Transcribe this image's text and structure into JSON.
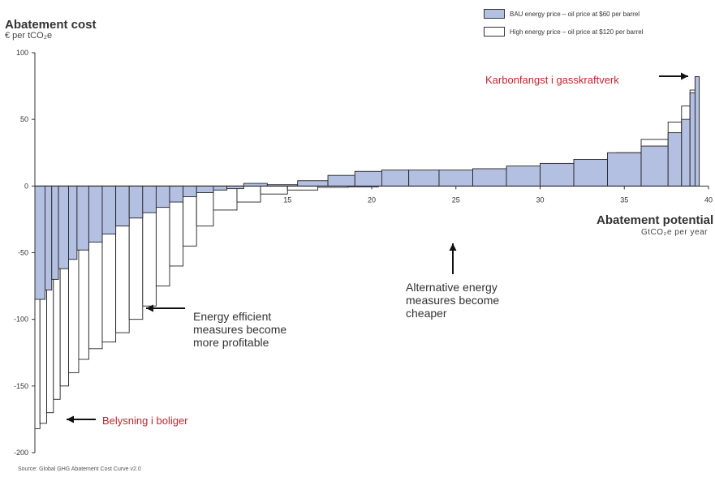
{
  "title": "Abatement cost",
  "y_unit": "€ per tCO₂e",
  "x_title": "Abatement potential",
  "x_unit": "GtCO₂e per year",
  "legend": [
    {
      "label": "BAU energy price – oil price at $60 per barrel",
      "color": "#b4c0e2"
    },
    {
      "label": "High energy price – oil price at $120 per barrel",
      "color": "#ffffff"
    }
  ],
  "annotations": {
    "efficient": [
      "Energy efficient",
      "measures become",
      "more profitable"
    ],
    "alternative": [
      "Alternative energy",
      "measures become",
      "cheaper"
    ],
    "capture": "Karbonfangst i gasskraftverk",
    "lighting": "Belysning i boliger"
  },
  "source": "Source: Global GHG Abatement Cost Curve v2.0",
  "chart_data": {
    "type": "bar",
    "title": "Abatement cost",
    "ylabel": "€ per tCO₂e",
    "xlabel": "Abatement potential",
    "xlim": [
      0,
      40
    ],
    "ylim": [
      -200,
      100
    ],
    "x_ticks": [
      15,
      20,
      25,
      30,
      35,
      40
    ],
    "y_ticks": [
      100,
      50,
      0,
      -50,
      -100,
      -150,
      -200
    ],
    "grid": false,
    "legend_position": "top-right",
    "series": [
      {
        "name": "BAU energy price – oil price at $60 per barrel",
        "cumulative_x": [
          0,
          0.6,
          1.0,
          1.4,
          2.0,
          2.5,
          3.2,
          4.0,
          4.8,
          5.6,
          6.4,
          7.2,
          8.0,
          8.8,
          9.6,
          10.6,
          11.4,
          12.4,
          13.8,
          15.6,
          17.4,
          19.0,
          20.6,
          22.2,
          24.0,
          26.0,
          28.0,
          30.0,
          32.0,
          34.0,
          36.0,
          37.6,
          38.4,
          38.9,
          39.2
        ],
        "values": [
          -85,
          -78,
          -70,
          -62,
          -55,
          -48,
          -42,
          -36,
          -30,
          -24,
          -20,
          -16,
          -12,
          -8,
          -5,
          -3,
          -2,
          2,
          1,
          4,
          8,
          11,
          12,
          12,
          12,
          13,
          15,
          17,
          20,
          25,
          30,
          40,
          50,
          70,
          82
        ]
      },
      {
        "name": "High energy price – oil price at $120 per barrel",
        "cumulative_x": [
          0,
          0.3,
          0.7,
          1.1,
          1.5,
          2.0,
          2.6,
          3.2,
          4.0,
          4.8,
          5.6,
          6.4,
          7.2,
          8.0,
          8.8,
          9.6,
          10.6,
          12.0,
          13.4,
          15.0,
          16.8,
          18.6,
          20.4,
          22.2,
          24.0,
          26.0,
          28.0,
          30.0,
          31.5,
          33.0,
          34.5,
          36.0,
          37.6,
          38.4,
          38.9,
          39.2
        ],
        "values": [
          -182,
          -178,
          -170,
          -160,
          -150,
          -140,
          -130,
          -122,
          -117,
          -110,
          -100,
          -90,
          -75,
          -60,
          -45,
          -30,
          -18,
          -12,
          -6,
          -3,
          -1,
          0,
          2,
          4,
          4,
          5,
          6,
          8,
          10,
          18,
          25,
          35,
          48,
          60,
          72,
          82
        ]
      }
    ]
  }
}
